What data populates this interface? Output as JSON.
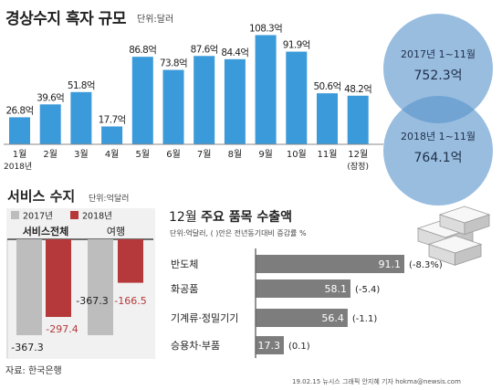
{
  "header": {
    "title": "경상수지 흑자 규모",
    "unit": "단위:달러"
  },
  "summary": [
    {
      "period": "2017년 1~11월",
      "value": "752.3억",
      "color": "#5b95cc"
    },
    {
      "period": "2018년 1~11월",
      "value": "764.1억",
      "color": "#5b95cc"
    }
  ],
  "services": {
    "title": "서비스 수지",
    "unit": "단위:억달러"
  },
  "exports": {
    "title_plain": "12월 ",
    "title_bold": "주요 품목 수출액",
    "note": "단위:억달러, ( )안은 전년동기대비 증감률 %"
  },
  "footer": {
    "source": "자료: 한국은행",
    "credit": "19.02.15  뉴시스 그래픽 안지혜 기자  hokma@newsis.com"
  },
  "chart_data": [
    {
      "type": "bar",
      "title": "경상수지 흑자 규모",
      "unit": "단위:달러",
      "year_label": "2018년",
      "categories": [
        "1월",
        "2월",
        "3월",
        "4월",
        "5월",
        "6월",
        "7월",
        "8월",
        "9월",
        "10월",
        "11월",
        "12월"
      ],
      "category_notes": [
        "",
        "",
        "",
        "",
        "",
        "",
        "",
        "",
        "",
        "",
        "",
        "(잠정)"
      ],
      "values": [
        26.8,
        39.6,
        51.8,
        17.7,
        86.8,
        73.8,
        87.6,
        84.4,
        108.3,
        91.9,
        50.6,
        48.2
      ],
      "labels": [
        "26.8억",
        "39.6억",
        "51.8억",
        "17.7억",
        "86.8억",
        "73.8억",
        "87.6억",
        "84.4억",
        "108.3억",
        "91.9억",
        "50.6억",
        "48.2억"
      ],
      "ylim": [
        0,
        125
      ],
      "color": "#3b9ad9"
    },
    {
      "type": "bar",
      "title": "서비스 수지",
      "unit": "단위:억달러",
      "categories": [
        "서비스전체",
        "여행"
      ],
      "series": [
        {
          "name": "2017년",
          "color": "#bdbdbd",
          "values": [
            -367.3,
            -367.3
          ],
          "labels": [
            "-367.3",
            "-367.3"
          ]
        },
        {
          "name": "2018년",
          "color": "#b5393a",
          "values": [
            -297.4,
            -166.5
          ],
          "labels": [
            "-297.4",
            "-166.5"
          ]
        }
      ],
      "ylim": [
        -400,
        0
      ]
    },
    {
      "type": "bar",
      "orientation": "horizontal",
      "title": "12월 주요 품목 수출액",
      "unit": "단위:억달러",
      "categories": [
        "반도체",
        "화공품",
        "기계류·정밀기기",
        "승용차·부품"
      ],
      "values": [
        91.1,
        58.1,
        56.4,
        17.3
      ],
      "changes": [
        "(-8.3%)",
        "(-5.4)",
        "(-1.1)",
        "(0.1)"
      ],
      "color": "#7d7d7d"
    }
  ]
}
